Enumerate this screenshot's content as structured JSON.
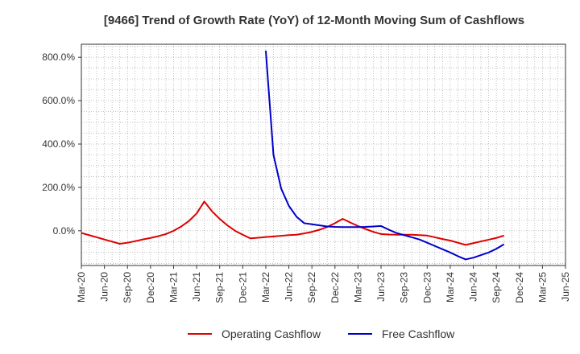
{
  "chart_data": {
    "type": "line",
    "title": "[9466]  Trend of Growth Rate (YoY) of 12-Month Moving Sum of Cashflows",
    "xlabel": "",
    "ylabel": "",
    "x_ticks": [
      "Mar-20",
      "Jun-20",
      "Sep-20",
      "Dec-20",
      "Mar-21",
      "Jun-21",
      "Sep-21",
      "Dec-21",
      "Mar-22",
      "Jun-22",
      "Sep-22",
      "Dec-22",
      "Mar-23",
      "Jun-23",
      "Sep-23",
      "Dec-23",
      "Mar-24",
      "Jun-24",
      "Sep-24",
      "Dec-24",
      "Mar-25",
      "Jun-25"
    ],
    "y_ticks": [
      {
        "value": 800,
        "label": "800.0%"
      },
      {
        "value": 600,
        "label": "600.0%"
      },
      {
        "value": 400,
        "label": "400.0%"
      },
      {
        "value": 200,
        "label": "200.0%"
      },
      {
        "value": 0,
        "label": "0.0%"
      }
    ],
    "ylim": [
      -160,
      860
    ],
    "grid": true,
    "legend_position": "bottom",
    "series": [
      {
        "name": "Operating Cashflow",
        "color": "#dd0000",
        "values": [
          -10,
          -20,
          -30,
          -40,
          -50,
          -60,
          -55,
          -48,
          -40,
          -33,
          -25,
          -15,
          0,
          20,
          45,
          80,
          135,
          90,
          55,
          25,
          0,
          -18,
          -35,
          -32,
          -29,
          -26,
          -23,
          -20,
          -18,
          -12,
          -5,
          5,
          18,
          35,
          55,
          38,
          22,
          8,
          -5,
          -15,
          -17,
          -18,
          -18,
          -18,
          -20,
          -22,
          -30,
          -38,
          -45,
          -55,
          -65,
          -57,
          -49,
          -41,
          -33,
          -22
        ]
      },
      {
        "name": "Free Cashflow",
        "color": "#0000cc",
        "values": [
          null,
          null,
          null,
          null,
          null,
          null,
          null,
          null,
          null,
          null,
          null,
          null,
          null,
          null,
          null,
          null,
          null,
          null,
          null,
          null,
          null,
          null,
          null,
          null,
          830,
          350,
          195,
          115,
          65,
          35,
          30,
          25,
          20,
          18,
          17,
          17,
          17,
          18,
          20,
          22,
          5,
          -10,
          -20,
          -30,
          -40,
          -55,
          -70,
          -85,
          -100,
          -117,
          -132,
          -124,
          -112,
          -100,
          -83,
          -62
        ]
      }
    ]
  }
}
